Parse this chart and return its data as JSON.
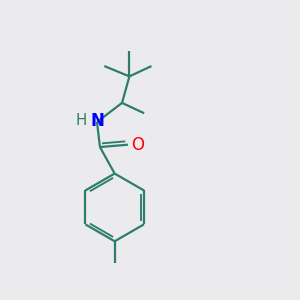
{
  "background_color": "#ebebed",
  "bond_color": "#2d7d6e",
  "nitrogen_color": "#0000ff",
  "oxygen_color": "#ff0000",
  "line_width": 1.6,
  "font_size": 12,
  "figsize": [
    3.0,
    3.0
  ],
  "dpi": 100,
  "xlim": [
    0,
    10
  ],
  "ylim": [
    0,
    10
  ]
}
